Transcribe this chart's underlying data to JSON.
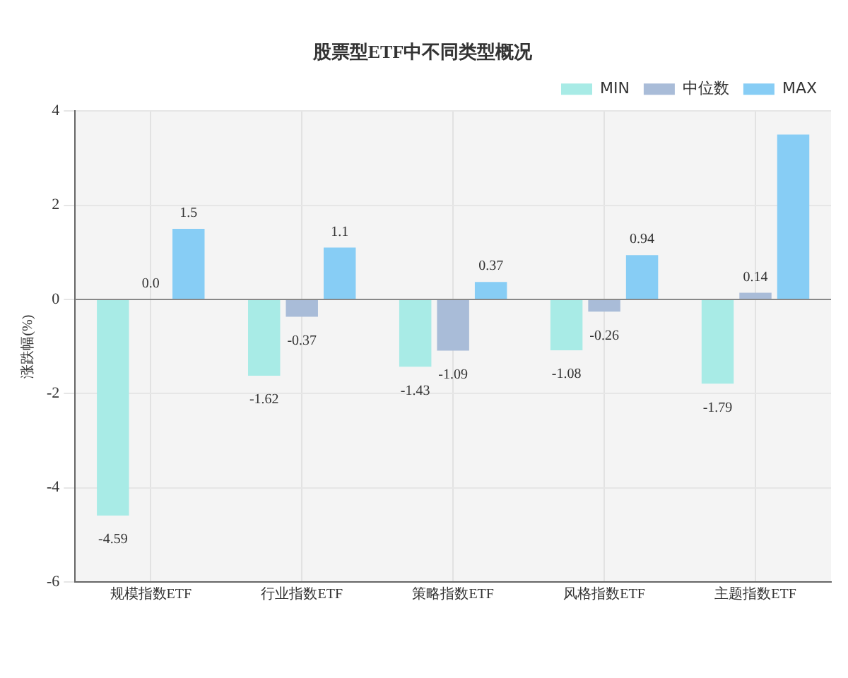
{
  "chart_data": {
    "type": "bar",
    "title": "股票型ETF中不同类型概况",
    "ylabel": "涨跌幅(%)",
    "categories": [
      "规模指数ETF",
      "行业指数ETF",
      "策略指数ETF",
      "风格指数ETF",
      "主题指数ETF"
    ],
    "series": [
      {
        "name": "MIN",
        "color": "#a8ebe6",
        "values": [
          -4.59,
          -1.62,
          -1.43,
          -1.08,
          -1.79
        ],
        "value_labels": [
          "-4.59",
          "-1.62",
          "-1.43",
          "-1.08",
          "-1.79"
        ]
      },
      {
        "name": "中位数",
        "color": "#a9bcd8",
        "values": [
          0.0,
          -0.37,
          -1.09,
          -0.26,
          0.14
        ],
        "value_labels": [
          "0.0",
          "-0.37",
          "-1.09",
          "-0.26",
          "0.14"
        ]
      },
      {
        "name": "MAX",
        "color": "#87cdf5",
        "values": [
          1.5,
          1.1,
          0.37,
          0.94,
          3.5
        ],
        "value_labels": [
          "1.5",
          "1.1",
          "0.37",
          "0.94",
          null
        ]
      }
    ],
    "ylim": [
      -6,
      4
    ],
    "yticks": [
      -6,
      -4,
      -2,
      0,
      2,
      4
    ],
    "grid": true,
    "legend": "top right"
  }
}
